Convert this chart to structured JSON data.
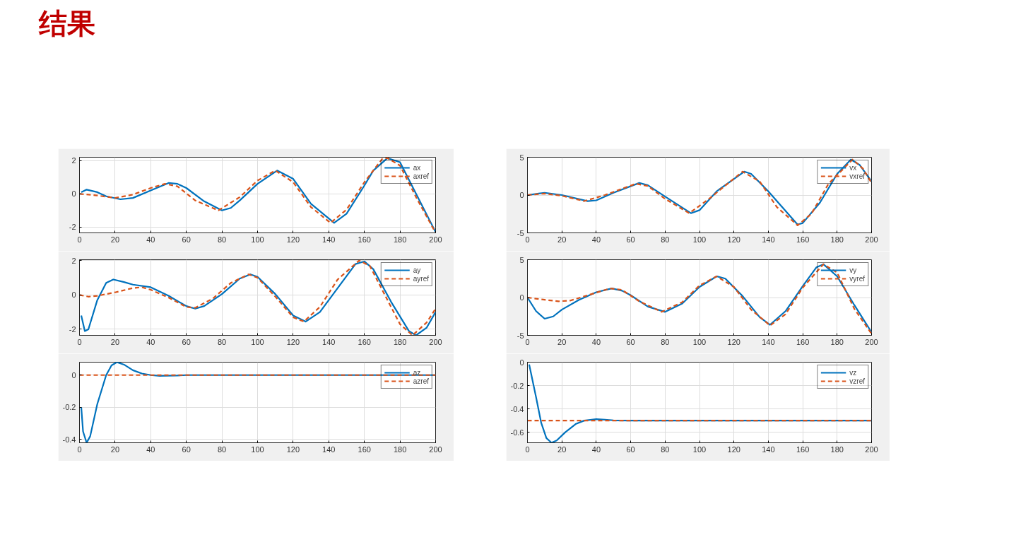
{
  "chart_data": [
    {
      "type": "line",
      "title": "结果",
      "xlim": [
        0,
        200
      ],
      "xticks": [
        0,
        20,
        40,
        60,
        80,
        100,
        120,
        140,
        160,
        180,
        200
      ],
      "ylim": [
        -2.35,
        2.2
      ],
      "yticks": [
        -2,
        0,
        2
      ],
      "grid": true,
      "legend": "top right",
      "series": [
        {
          "name": "ax",
          "color": "#0072bd",
          "line_style": "solid",
          "x": [
            1,
            4,
            10,
            15,
            23,
            30,
            40,
            50,
            55,
            60,
            70,
            80,
            85,
            90,
            100,
            111,
            120,
            130,
            143,
            150,
            160,
            165,
            173,
            180,
            190,
            200
          ],
          "values": [
            0.1,
            0.25,
            0.1,
            -0.15,
            -0.33,
            -0.25,
            0.2,
            0.65,
            0.6,
            0.35,
            -0.45,
            -1.0,
            -0.85,
            -0.4,
            0.6,
            1.4,
            0.9,
            -0.6,
            -1.75,
            -1.2,
            0.5,
            1.4,
            2.15,
            1.9,
            -0.2,
            -2.3
          ]
        },
        {
          "name": "axref",
          "color": "#d95319",
          "line_style": "dashed",
          "x": [
            0,
            10,
            20,
            30,
            40,
            48,
            55,
            65,
            78,
            90,
            100,
            110,
            120,
            130,
            141,
            150,
            160,
            170,
            173,
            180,
            190,
            200
          ],
          "values": [
            0,
            -0.1,
            -0.25,
            -0.05,
            0.35,
            0.6,
            0.45,
            -0.4,
            -1.0,
            -0.2,
            0.8,
            1.4,
            0.7,
            -0.8,
            -1.75,
            -0.95,
            0.7,
            2.1,
            2.15,
            1.7,
            -0.4,
            -2.35
          ]
        }
      ]
    },
    {
      "type": "line",
      "xlim": [
        0,
        200
      ],
      "xticks": [
        0,
        20,
        40,
        60,
        80,
        100,
        120,
        140,
        160,
        180,
        200
      ],
      "ylim": [
        -5,
        5
      ],
      "yticks": [
        -5,
        0,
        5
      ],
      "grid": true,
      "legend": "top right",
      "series": [
        {
          "name": "vx",
          "color": "#0072bd",
          "line_style": "solid",
          "x": [
            0,
            10,
            20,
            35,
            40,
            50,
            65,
            70,
            80,
            95,
            100,
            110,
            126,
            130,
            140,
            157,
            160,
            170,
            180,
            188,
            193,
            200
          ],
          "values": [
            0,
            0.3,
            0.0,
            -0.8,
            -0.7,
            0.3,
            1.6,
            1.3,
            -0.2,
            -2.4,
            -2.0,
            0.5,
            3.1,
            2.8,
            0.5,
            -3.9,
            -3.7,
            -1.0,
            2.8,
            4.7,
            4.0,
            1.8
          ]
        },
        {
          "name": "vxref",
          "color": "#d95319",
          "line_style": "dashed",
          "x": [
            0,
            10,
            20,
            33,
            45,
            63,
            70,
            80,
            94,
            105,
            125,
            135,
            145,
            157,
            165,
            175,
            189,
            195,
            200
          ],
          "values": [
            0,
            0.2,
            -0.1,
            -0.8,
            0.0,
            1.5,
            1.2,
            -0.5,
            -2.4,
            -0.6,
            3.1,
            1.8,
            -1.6,
            -4.0,
            -2.5,
            1.5,
            4.7,
            3.5,
            1.6
          ]
        }
      ]
    },
    {
      "type": "line",
      "xlim": [
        0,
        200
      ],
      "xticks": [
        0,
        20,
        40,
        60,
        80,
        100,
        120,
        140,
        160,
        180,
        200
      ],
      "ylim": [
        -2.35,
        2.05
      ],
      "yticks": [
        -2,
        0,
        2
      ],
      "grid": true,
      "legend": "top right",
      "series": [
        {
          "name": "ay",
          "color": "#0072bd",
          "line_style": "solid",
          "x": [
            1,
            3,
            5,
            10,
            15,
            19,
            25,
            30,
            40,
            50,
            60,
            65,
            70,
            80,
            90,
            96,
            100,
            110,
            120,
            127,
            135,
            145,
            155,
            160,
            165,
            175,
            185,
            189,
            195,
            200
          ],
          "values": [
            -1.2,
            -2.1,
            -2.0,
            -0.3,
            0.7,
            0.9,
            0.75,
            0.6,
            0.45,
            -0.05,
            -0.65,
            -0.8,
            -0.65,
            0.05,
            0.95,
            1.2,
            1.05,
            0.05,
            -1.2,
            -1.55,
            -1.0,
            0.4,
            1.8,
            1.95,
            1.5,
            -0.4,
            -2.1,
            -2.35,
            -1.9,
            -1.0
          ]
        },
        {
          "name": "ayref",
          "color": "#d95319",
          "line_style": "dashed",
          "x": [
            0,
            5,
            10,
            20,
            30,
            35,
            40,
            50,
            60,
            65,
            75,
            85,
            95,
            100,
            110,
            120,
            126,
            135,
            145,
            157,
            163,
            170,
            180,
            187,
            195,
            200
          ],
          "values": [
            0,
            -0.1,
            -0.05,
            0.15,
            0.4,
            0.45,
            0.3,
            -0.15,
            -0.7,
            -0.75,
            -0.2,
            0.7,
            1.2,
            1.0,
            -0.1,
            -1.3,
            -1.55,
            -0.7,
            0.9,
            2.0,
            1.7,
            0.3,
            -1.7,
            -2.35,
            -1.6,
            -0.8
          ]
        }
      ]
    },
    {
      "type": "line",
      "xlim": [
        0,
        200
      ],
      "xticks": [
        0,
        20,
        40,
        60,
        80,
        100,
        120,
        140,
        160,
        180,
        200
      ],
      "ylim": [
        -5,
        5
      ],
      "yticks": [
        -5,
        0,
        5
      ],
      "grid": true,
      "legend": "top right",
      "series": [
        {
          "name": "vy",
          "color": "#0072bd",
          "line_style": "solid",
          "x": [
            0,
            5,
            10,
            15,
            20,
            30,
            40,
            49,
            55,
            60,
            70,
            80,
            90,
            100,
            110,
            115,
            125,
            135,
            141,
            150,
            160,
            168,
            172,
            180,
            190,
            200
          ],
          "values": [
            0,
            -1.8,
            -2.8,
            -2.5,
            -1.6,
            -0.3,
            0.7,
            1.2,
            0.9,
            0.3,
            -1.2,
            -1.9,
            -0.8,
            1.4,
            2.8,
            2.5,
            0.2,
            -2.6,
            -3.6,
            -1.8,
            1.5,
            4.0,
            4.4,
            2.8,
            -1.0,
            -4.6
          ]
        },
        {
          "name": "vyref",
          "color": "#d95319",
          "line_style": "dashed",
          "x": [
            0,
            10,
            18,
            25,
            35,
            48,
            55,
            65,
            78,
            90,
            100,
            110,
            120,
            130,
            141,
            150,
            160,
            172,
            180,
            190,
            200
          ],
          "values": [
            0,
            -0.3,
            -0.5,
            -0.4,
            0.3,
            1.2,
            1.0,
            -0.5,
            -1.9,
            -0.6,
            1.6,
            2.8,
            1.4,
            -1.6,
            -3.7,
            -2.2,
            1.3,
            4.4,
            3.3,
            -1.5,
            -4.8
          ]
        }
      ]
    },
    {
      "type": "line",
      "xlim": [
        0,
        200
      ],
      "xticks": [
        0,
        20,
        40,
        60,
        80,
        100,
        120,
        140,
        160,
        180,
        200
      ],
      "ylim": [
        -0.42,
        0.08
      ],
      "yticks": [
        -0.4,
        -0.2,
        0
      ],
      "grid": true,
      "legend": "top right",
      "series": [
        {
          "name": "az",
          "color": "#0072bd",
          "line_style": "solid",
          "x": [
            1,
            2,
            4,
            6,
            10,
            15,
            18,
            21,
            25,
            30,
            35,
            40,
            45,
            55,
            60,
            200
          ],
          "values": [
            -0.2,
            -0.35,
            -0.42,
            -0.38,
            -0.18,
            0.0,
            0.06,
            0.08,
            0.065,
            0.03,
            0.01,
            0.0,
            -0.005,
            -0.003,
            0,
            0
          ]
        },
        {
          "name": "azref",
          "color": "#d95319",
          "line_style": "dashed",
          "x": [
            0,
            200
          ],
          "values": [
            0,
            0
          ]
        }
      ]
    },
    {
      "type": "line",
      "xlim": [
        0,
        200
      ],
      "xticks": [
        0,
        20,
        40,
        60,
        80,
        100,
        120,
        140,
        160,
        180,
        200
      ],
      "ylim": [
        -0.69,
        0
      ],
      "yticks": [
        -0.6,
        -0.4,
        -0.2,
        0
      ],
      "grid": true,
      "legend": "top right",
      "series": [
        {
          "name": "vz",
          "color": "#0072bd",
          "line_style": "solid",
          "x": [
            1,
            5,
            8,
            11,
            14,
            17,
            22,
            28,
            33,
            40,
            45,
            50,
            60,
            200
          ],
          "values": [
            -0.02,
            -0.3,
            -0.52,
            -0.65,
            -0.69,
            -0.67,
            -0.6,
            -0.53,
            -0.5,
            -0.488,
            -0.492,
            -0.498,
            -0.5,
            -0.5
          ]
        },
        {
          "name": "vzref",
          "color": "#d95319",
          "line_style": "dashed",
          "x": [
            0,
            200
          ],
          "values": [
            -0.5,
            -0.5
          ]
        }
      ]
    }
  ]
}
